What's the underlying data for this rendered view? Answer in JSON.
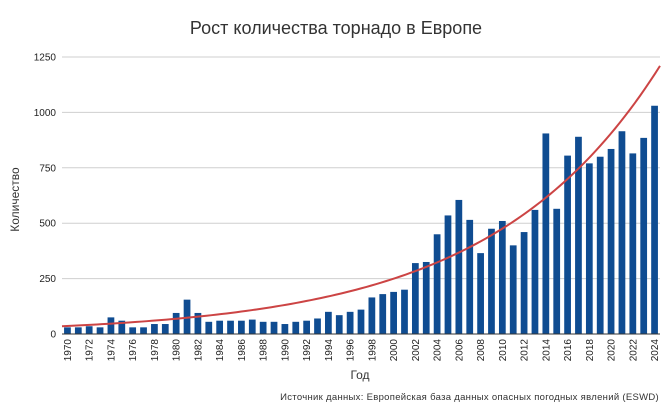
{
  "chart_data": {
    "type": "bar",
    "title": "Рост количества торнадо в Европе",
    "xlabel": "Год",
    "ylabel": "Количество",
    "source": "Источник данных: Европейская база данных опасных погодных явлений (ESWD)",
    "ylim": [
      0,
      1250
    ],
    "yticks": [
      0,
      250,
      500,
      750,
      1000,
      1250
    ],
    "ytick_labels": [
      "0",
      "250",
      "500",
      "750",
      "1000",
      "1250"
    ],
    "xtick_labels": [
      "1970",
      "1972",
      "1974",
      "1976",
      "1978",
      "1980",
      "1982",
      "1984",
      "1986",
      "1988",
      "1990",
      "1992",
      "1994",
      "1996",
      "1998",
      "2000",
      "2002",
      "2004",
      "2006",
      "2008",
      "2010",
      "2012",
      "2014",
      "2016",
      "2018",
      "2020",
      "2022",
      "2024"
    ],
    "categories": [
      1970,
      1971,
      1972,
      1973,
      1974,
      1975,
      1976,
      1977,
      1978,
      1979,
      1980,
      1981,
      1982,
      1983,
      1984,
      1985,
      1986,
      1987,
      1988,
      1989,
      1990,
      1991,
      1992,
      1993,
      1994,
      1995,
      1996,
      1997,
      1998,
      1999,
      2000,
      2001,
      2002,
      2003,
      2004,
      2005,
      2006,
      2007,
      2008,
      2009,
      2010,
      2011,
      2012,
      2013,
      2014,
      2015,
      2016,
      2017,
      2018,
      2019,
      2020,
      2021,
      2022,
      2023,
      2024
    ],
    "values": [
      30,
      30,
      35,
      30,
      75,
      60,
      30,
      30,
      45,
      45,
      95,
      155,
      95,
      55,
      60,
      60,
      60,
      65,
      55,
      55,
      45,
      55,
      60,
      70,
      100,
      85,
      100,
      110,
      165,
      180,
      190,
      200,
      320,
      325,
      450,
      535,
      605,
      515,
      365,
      475,
      510,
      400,
      460,
      560,
      905,
      565,
      805,
      890,
      770,
      800,
      835,
      915,
      815,
      885,
      1030
    ],
    "colors": {
      "bar": "#0f4c91",
      "trend": "#cc4444",
      "grid": "#cfcfcf",
      "axis": "#333333"
    },
    "trendline": {
      "type": "exponential",
      "start": {
        "x": 1969.5,
        "y": 35
      },
      "end": {
        "x": 2024.5,
        "y": 1210
      }
    },
    "grid": true,
    "legend": "none"
  }
}
